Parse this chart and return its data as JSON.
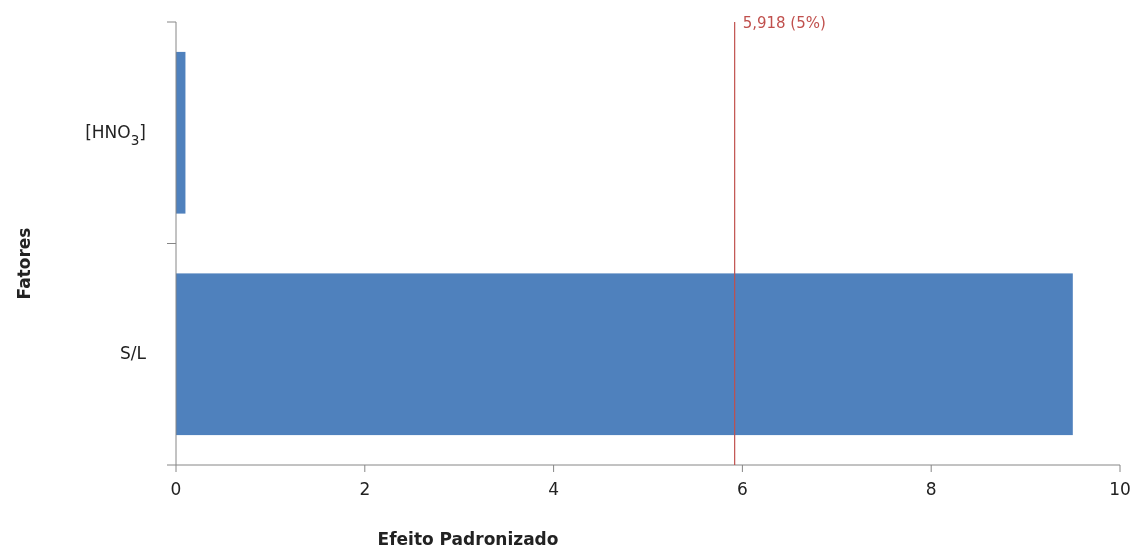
{
  "chart_data": {
    "type": "bar",
    "orientation": "horizontal",
    "categories": [
      "[HNO$_{3}$]",
      "S/L"
    ],
    "values": [
      0.1,
      9.5
    ],
    "color": "#4f81bd",
    "xlim": [
      0,
      10
    ],
    "xticks": [
      0,
      2,
      4,
      6,
      8,
      10
    ],
    "xlabel": "Efeito Padronizado",
    "ylabel": "Fatores",
    "grid": false,
    "ref_lines": [
      {
        "axis": "x",
        "value": 5.918,
        "label": "5,918 (5%)",
        "color": "#c0504d"
      }
    ]
  }
}
